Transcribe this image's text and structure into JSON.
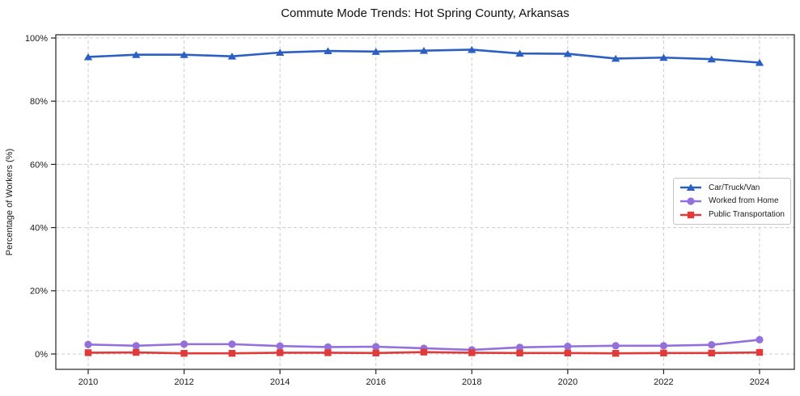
{
  "title": "Commute Mode Trends: Hot Spring County, Arkansas",
  "chart_data": {
    "type": "line",
    "title": "Commute Mode Trends: Hot Spring County, Arkansas",
    "ylabel": "Percentage of Workers (%)",
    "x": [
      2010,
      2011,
      2012,
      2013,
      2014,
      2015,
      2016,
      2017,
      2018,
      2019,
      2020,
      2021,
      2022,
      2023,
      2024
    ],
    "xticks": [
      2010,
      2012,
      2014,
      2016,
      2018,
      2020,
      2022,
      2024
    ],
    "yticks": [
      0,
      20,
      40,
      60,
      80,
      100
    ],
    "ytick_labels": [
      "0%",
      "20%",
      "40%",
      "60%",
      "80%",
      "100%"
    ],
    "ylim": [
      0,
      100
    ],
    "grid": true,
    "grid_style": "dashed",
    "legend_position": "center-right",
    "series": [
      {
        "name": "Car/Truck/Van",
        "color": "#2b5fc4",
        "marker": "triangle",
        "values": [
          94.0,
          94.7,
          94.7,
          94.2,
          95.4,
          95.9,
          95.7,
          96.0,
          96.3,
          95.1,
          95.0,
          93.5,
          93.8,
          93.3,
          92.2
        ]
      },
      {
        "name": "Worked from Home",
        "color": "#9370db",
        "marker": "circle",
        "values": [
          3.0,
          2.6,
          3.1,
          3.1,
          2.5,
          2.2,
          2.3,
          1.8,
          1.3,
          2.1,
          2.4,
          2.6,
          2.6,
          2.9,
          4.5
        ]
      },
      {
        "name": "Public Transportation",
        "color": "#e03a3a",
        "marker": "square",
        "values": [
          0.4,
          0.5,
          0.2,
          0.2,
          0.4,
          0.4,
          0.3,
          0.6,
          0.4,
          0.3,
          0.3,
          0.2,
          0.3,
          0.3,
          0.5
        ]
      }
    ],
    "colors": {
      "grid": "#cccccc",
      "spine": "#262626",
      "tick_label": "#1a1a1a",
      "background": "#ffffff"
    }
  }
}
